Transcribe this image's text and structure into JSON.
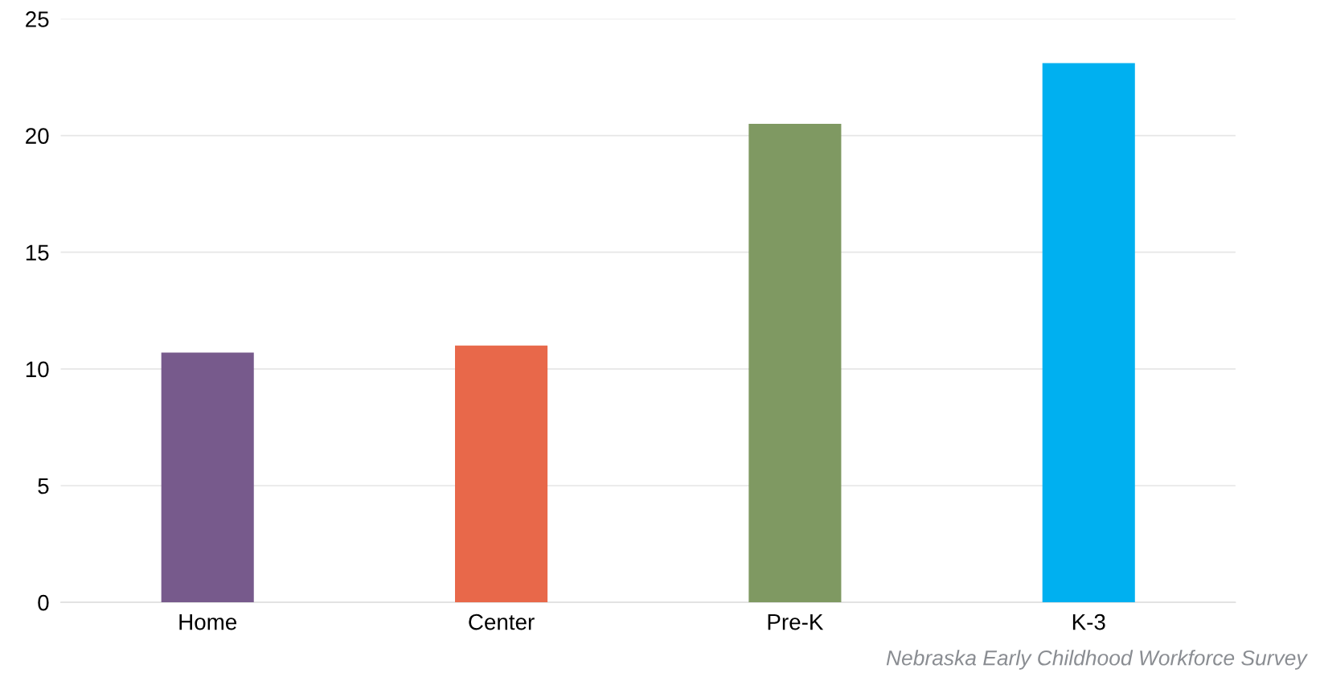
{
  "chart_data": {
    "type": "bar",
    "categories": [
      "Home",
      "Center",
      "Pre-K",
      "K-3"
    ],
    "values": [
      10.7,
      11.0,
      20.5,
      23.1
    ],
    "colors": [
      "#775a8c",
      "#e8684a",
      "#7f9962",
      "#00b0f0"
    ],
    "ylim": [
      0,
      25
    ],
    "yticks": [
      0,
      5,
      10,
      15,
      20,
      25
    ],
    "grid": "y",
    "legend": false,
    "annotations": [
      "Nebraska Early Childhood Workforce Survey"
    ]
  }
}
